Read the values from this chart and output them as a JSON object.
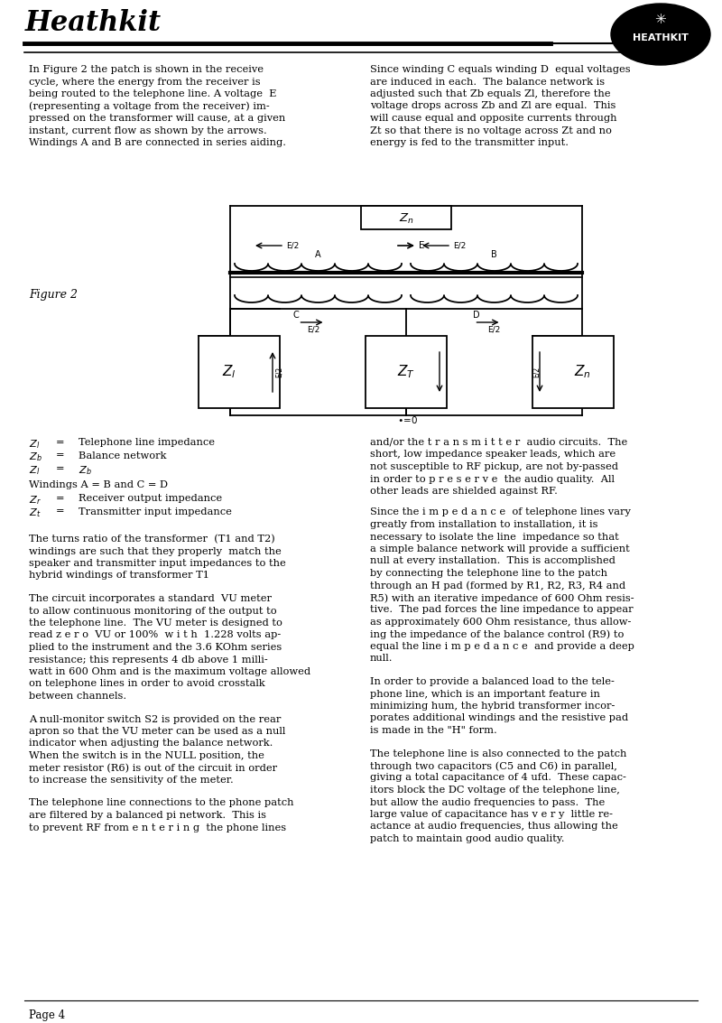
{
  "bg_color": "#ffffff",
  "page_width": 8.0,
  "page_height": 11.33,
  "heathkit_badge": "HEATHKIT",
  "left_col_para1": "In Figure 2 the patch is shown in the receive\ncycle, where the energy from the receiver is\nbeing routed to the telephone line. A voltage  E\n(representing a voltage from the receiver) im-\npressed on the transformer will cause, at a given\ninstant, current flow as shown by the arrows.\nWindings A and B are connected in series aiding.",
  "right_col_para1": "Since winding C equals winding D  equal voltages\nare induced in each.  The balance network is\nadjusted such that Zb equals Zl, therefore the\nvoltage drops across Zb and Zl are equal.  This\nwill cause equal and opposite currents through\nZt so that there is no voltage across Zt and no\nenergy is fed to the transmitter input.",
  "figure_label": "Figure 2",
  "legend_lines": [
    [
      "Zl",
      "=",
      "Telephone line impedance"
    ],
    [
      "Zb",
      "=",
      "Balance network"
    ],
    [
      "Zl",
      "=",
      "Zb"
    ],
    [
      "",
      "",
      ""
    ],
    [
      "Windings A = B and C = D",
      "",
      ""
    ],
    [
      "Zr",
      "=",
      "Receiver output impedance"
    ],
    [
      "Zt",
      "=",
      "Transmitter input impedance"
    ]
  ],
  "right_col_para2": "and/or the t r a n s m i t t e r  audio circuits.  The\nshort, low impedance speaker leads, which are\nnot susceptible to RF pickup, are not by-passed\nin order to p r e s e r v e  the audio quality.  All\nother leads are shielded against RF.",
  "right_col_para3": "Since the i m p e d a n c e  of telephone lines vary\ngreatly from installation to installation, it is\nnecessary to isolate the line  impedance so that\na simple balance network will provide a sufficient\nnull at every installation.  This is accomplished\nby connecting the telephone line to the patch\nthrough an H pad (formed by R1, R2, R3, R4 and\nR5) with an iterative impedance of 600 Ohm resis-\ntive.  The pad forces the line impedance to appear\nas approximately 600 Ohm resistance, thus allow-\ning the impedance of the balance control (R9) to\nequal the line i m p e d a n c e  and provide a deep\nnull.",
  "left_col_para2": "The turns ratio of the transformer  (T1 and T2)\nwindings are such that they properly  match the\nspeaker and transmitter input impedances to the\nhybrid windings of transformer T1",
  "left_col_para3": "The circuit incorporates a standard  VU meter\nto allow continuous monitoring of the output to\nthe telephone line.  The VU meter is designed to\nread z e r o  VU or 100%  w i t h  1.228 volts ap-\nplied to the instrument and the 3.6 KOhm series\nresistance; this represents 4 db above 1 milli-\nwatt in 600 Ohm and is the maximum voltage allowed\non telephone lines in order to avoid crosstalk\nbetween channels.",
  "left_col_para4": "A null-monitor switch S2 is provided on the rear\napron so that the VU meter can be used as a null\nindicator when adjusting the balance network.\nWhen the switch is in the NULL position, the\nmeter resistor (R6) is out of the circuit in order\nto increase the sensitivity of the meter.",
  "left_col_para5": "The telephone line connections to the phone patch\nare filtered by a balanced pi network.  This is\nto prevent RF from e n t e r i n g  the phone lines",
  "right_col_para4": "In order to provide a balanced load to the tele-\nphone line, which is an important feature in\nminimizing hum, the hybrid transformer incor-\nporates additional windings and the resistive pad\nis made in the \"H\" form.",
  "right_col_para5": "The telephone line is also connected to the patch\nthrough two capacitors (C5 and C6) in parallel,\ngiving a total capacitance of 4 ufd.  These capac-\nitors block the DC voltage of the telephone line,\nbut allow the audio frequencies to pass.  The\nlarge value of capacitance has v e r y  little re-\nactance at audio frequencies, thus allowing the\npatch to maintain good audio quality.",
  "page_footer": "Page 4"
}
